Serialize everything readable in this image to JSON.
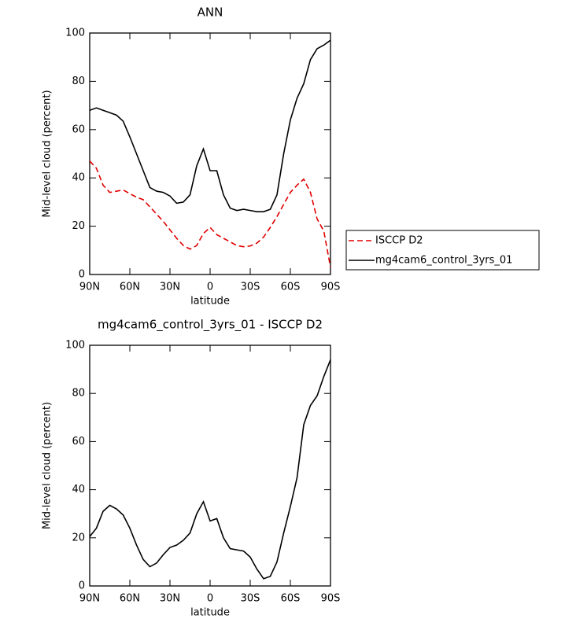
{
  "chart_data": [
    {
      "type": "line",
      "title": "ANN",
      "x_label": "latitude",
      "y_label": "Mid-level cloud (percent)",
      "x": [
        90,
        85,
        80,
        75,
        70,
        65,
        60,
        55,
        50,
        45,
        40,
        35,
        30,
        25,
        20,
        15,
        10,
        5,
        0,
        -5,
        -10,
        -15,
        -20,
        -25,
        -30,
        -35,
        -40,
        -45,
        -50,
        -55,
        -60,
        -65,
        -70,
        -75,
        -80,
        -85,
        -90
      ],
      "series": [
        {
          "name": "ISCCP D2",
          "color": "#e00000",
          "dash": true,
          "values": [
            47,
            44,
            37,
            34,
            34.5,
            35,
            33.5,
            32,
            31,
            28,
            25,
            22,
            18.5,
            15,
            12,
            10.5,
            12,
            17,
            19.5,
            16.5,
            15,
            13.5,
            12,
            11.5,
            11.8,
            13,
            15.5,
            19.5,
            24,
            29,
            34,
            37,
            39.5,
            34,
            23,
            18,
            3
          ]
        },
        {
          "name": "mg4cam6_control_3yrs_01",
          "color": "#000000",
          "dash": false,
          "values": [
            68,
            69,
            68,
            67,
            66,
            63.5,
            57,
            50,
            43,
            36,
            34.5,
            34,
            32.5,
            29.5,
            30,
            33,
            45,
            52,
            43,
            43,
            33,
            27.5,
            26.5,
            27,
            26.5,
            26,
            26,
            27,
            33,
            50,
            64,
            73,
            79,
            89,
            93.5,
            95,
            97
          ]
        }
      ],
      "xlim": [
        90,
        -90
      ],
      "ylim": [
        0,
        100
      ],
      "xticks": [
        {
          "value": 90,
          "label": "90N"
        },
        {
          "value": 60,
          "label": "60N"
        },
        {
          "value": 30,
          "label": "30N"
        },
        0,
        {
          "value": -30,
          "label": "30S"
        },
        {
          "value": -60,
          "label": "60S"
        },
        {
          "value": -90,
          "label": "90S"
        }
      ],
      "yticks": [
        0,
        20,
        40,
        60,
        80,
        100
      ],
      "legend": "right"
    },
    {
      "type": "line",
      "title": "mg4cam6_control_3yrs_01 - ISCCP D2",
      "x_label": "latitude",
      "y_label": "Mid-level cloud (percent)",
      "x": [
        90,
        85,
        80,
        75,
        70,
        65,
        60,
        55,
        50,
        45,
        40,
        35,
        30,
        25,
        20,
        15,
        10,
        5,
        0,
        -5,
        -10,
        -15,
        -20,
        -25,
        -30,
        -35,
        -40,
        -45,
        -50,
        -55,
        -60,
        -65,
        -70,
        -75,
        -80,
        -85,
        -90
      ],
      "series": [
        {
          "color": "#000000",
          "dash": false,
          "values": [
            20.5,
            24,
            31,
            33.5,
            32,
            29.5,
            24,
            17,
            11,
            8,
            9.5,
            13,
            16,
            17,
            19,
            22,
            30,
            35,
            27,
            28,
            20,
            15.5,
            15,
            14.5,
            12,
            7,
            3,
            4,
            10,
            22,
            33,
            45,
            67,
            75,
            79,
            87,
            94
          ]
        }
      ],
      "xlim": [
        90,
        -90
      ],
      "ylim": [
        0,
        100
      ],
      "xticks": [
        {
          "value": 90,
          "label": "90N"
        },
        {
          "value": 60,
          "label": "60N"
        },
        {
          "value": 30,
          "label": "30N"
        },
        0,
        {
          "value": -30,
          "label": "30S"
        },
        {
          "value": -60,
          "label": "60S"
        },
        {
          "value": -90,
          "label": "90S"
        }
      ],
      "yticks": [
        0,
        20,
        40,
        60,
        80,
        100
      ]
    }
  ]
}
